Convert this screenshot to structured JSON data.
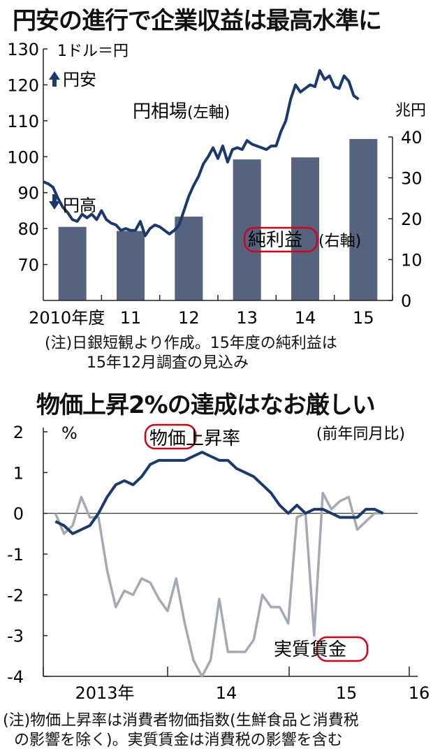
{
  "chart_data": [
    {
      "type": "bar+line",
      "title": "円安の進行で企業収益は最高水準に",
      "x_tick_labels": [
        "2010年度",
        "11",
        "12",
        "13",
        "14",
        "15"
      ],
      "left_axis": {
        "unit": "1ドル＝円",
        "ticks": [
          70,
          80,
          90,
          100,
          110,
          120,
          130
        ],
        "ylim": [
          60,
          130
        ]
      },
      "right_axis": {
        "unit": "兆円",
        "ticks": [
          0,
          10,
          20,
          30,
          40
        ],
        "ylim": [
          0,
          40
        ]
      },
      "up_label": "円安",
      "down_label": "円高",
      "line_series": {
        "name": "円相場",
        "axis_note": "(左軸)",
        "color": "#1b3a6b",
        "x": [
          0,
          0.083,
          0.167,
          0.25,
          0.333,
          0.417,
          0.5,
          0.583,
          0.667,
          0.75,
          0.833,
          0.917,
          1.0,
          1.083,
          1.167,
          1.25,
          1.333,
          1.417,
          1.5,
          1.583,
          1.667,
          1.75,
          1.833,
          1.917,
          2.0,
          2.083,
          2.167,
          2.25,
          2.333,
          2.417,
          2.5,
          2.583,
          2.667,
          2.75,
          2.833,
          2.917,
          3.0,
          3.083,
          3.167,
          3.25,
          3.333,
          3.417,
          3.5,
          3.583,
          3.667,
          3.75,
          3.833,
          3.917,
          4.0,
          4.083,
          4.167,
          4.25,
          4.333,
          4.417,
          4.5,
          4.583,
          4.667,
          4.75,
          4.833,
          4.917,
          5.0,
          5.083,
          5.167,
          5.25,
          5.333,
          5.417
        ],
        "y": [
          93,
          92.5,
          91.5,
          88.5,
          86,
          84.5,
          82.5,
          82,
          84,
          83,
          84,
          82.5,
          85,
          82.5,
          81.5,
          81,
          79.5,
          80,
          79.5,
          79.5,
          82,
          78,
          80,
          81,
          80.5,
          79.5,
          78.5,
          79.5,
          81,
          85,
          89,
          92,
          94.5,
          98,
          100,
          102.5,
          99.5,
          103,
          98.5,
          102,
          102.5,
          102,
          104.5,
          103.5,
          103,
          102.5,
          102,
          103,
          103,
          107,
          110,
          116,
          120,
          118,
          119,
          120,
          119.5,
          124,
          121.5,
          122.5,
          119.5,
          119,
          122.5,
          121,
          117,
          116
        ]
      },
      "bar_series": {
        "name": "純利益",
        "axis_note": "(右軸)",
        "color": "#56637e",
        "values": [
          18,
          17,
          20.5,
          34.5,
          35,
          39.5
        ]
      },
      "footnote": [
        "(注)日銀短観より作成。15年度の純利益は",
        "15年12月調査の見込み"
      ]
    },
    {
      "type": "line",
      "title": "物価上昇2%の達成はなお厳しい",
      "subtitle": "(前年同月比)",
      "ylabel": "%",
      "ylim": [
        -4,
        2
      ],
      "y_ticks": [
        2,
        1,
        0,
        -1,
        -2,
        -3,
        -4
      ],
      "x_tick_labels": [
        "2013年",
        "14",
        "15",
        "16"
      ],
      "x_tick_month_index": [
        0,
        12,
        24,
        36
      ],
      "series": [
        {
          "name": "物価上昇率",
          "color": "#1b3a6b",
          "x": [
            -2,
            -1,
            0,
            1,
            2,
            3,
            4,
            5,
            6,
            7,
            8,
            9,
            10,
            11,
            12,
            13,
            14,
            15,
            16,
            17,
            18,
            19,
            20,
            21,
            22,
            23,
            24,
            25,
            26,
            27,
            28,
            29,
            30,
            31,
            32,
            33,
            34,
            35,
            36
          ],
          "y": [
            -0.2,
            -0.3,
            -0.5,
            -0.4,
            -0.3,
            0.0,
            0.4,
            0.7,
            0.8,
            0.7,
            0.9,
            1.2,
            1.3,
            1.3,
            1.3,
            1.3,
            1.4,
            1.5,
            1.4,
            1.3,
            1.3,
            1.1,
            1.0,
            0.9,
            0.7,
            0.5,
            0.2,
            0.0,
            0.2,
            0.0,
            0.1,
            0.1,
            0.0,
            -0.1,
            -0.1,
            -0.1,
            0.1,
            0.1,
            0.0
          ]
        },
        {
          "name": "実質賃金",
          "color": "#a3a9b5",
          "x": [
            -2,
            -1,
            0,
            1,
            2,
            3,
            4,
            5,
            6,
            7,
            8,
            9,
            10,
            11,
            12,
            13,
            14,
            15,
            16,
            17,
            18,
            19,
            20,
            21,
            22,
            23,
            24,
            25,
            26,
            27,
            28,
            29,
            30,
            31,
            32,
            33,
            34,
            35,
            36
          ],
          "y": [
            0.0,
            -0.5,
            -0.3,
            0.4,
            -0.1,
            -0.1,
            -1.4,
            -2.3,
            -1.9,
            -2.0,
            -1.6,
            -1.7,
            -2.1,
            -2.4,
            -1.6,
            -2.7,
            -3.6,
            -4.0,
            -3.6,
            -2.1,
            -3.4,
            -3.4,
            -3.4,
            -3.1,
            -2.0,
            -2.3,
            -2.3,
            -2.7,
            -0.1,
            0.0,
            -3.0,
            0.5,
            0.1,
            0.3,
            0.4,
            -0.4,
            -0.2,
            0.0,
            0.0
          ]
        }
      ],
      "footnote": [
        "(注)物価上昇率は消費者物価指数(生鮮食品と消費税",
        "の影響を除く)。実質賃金は消費税の影響を含む"
      ]
    }
  ]
}
